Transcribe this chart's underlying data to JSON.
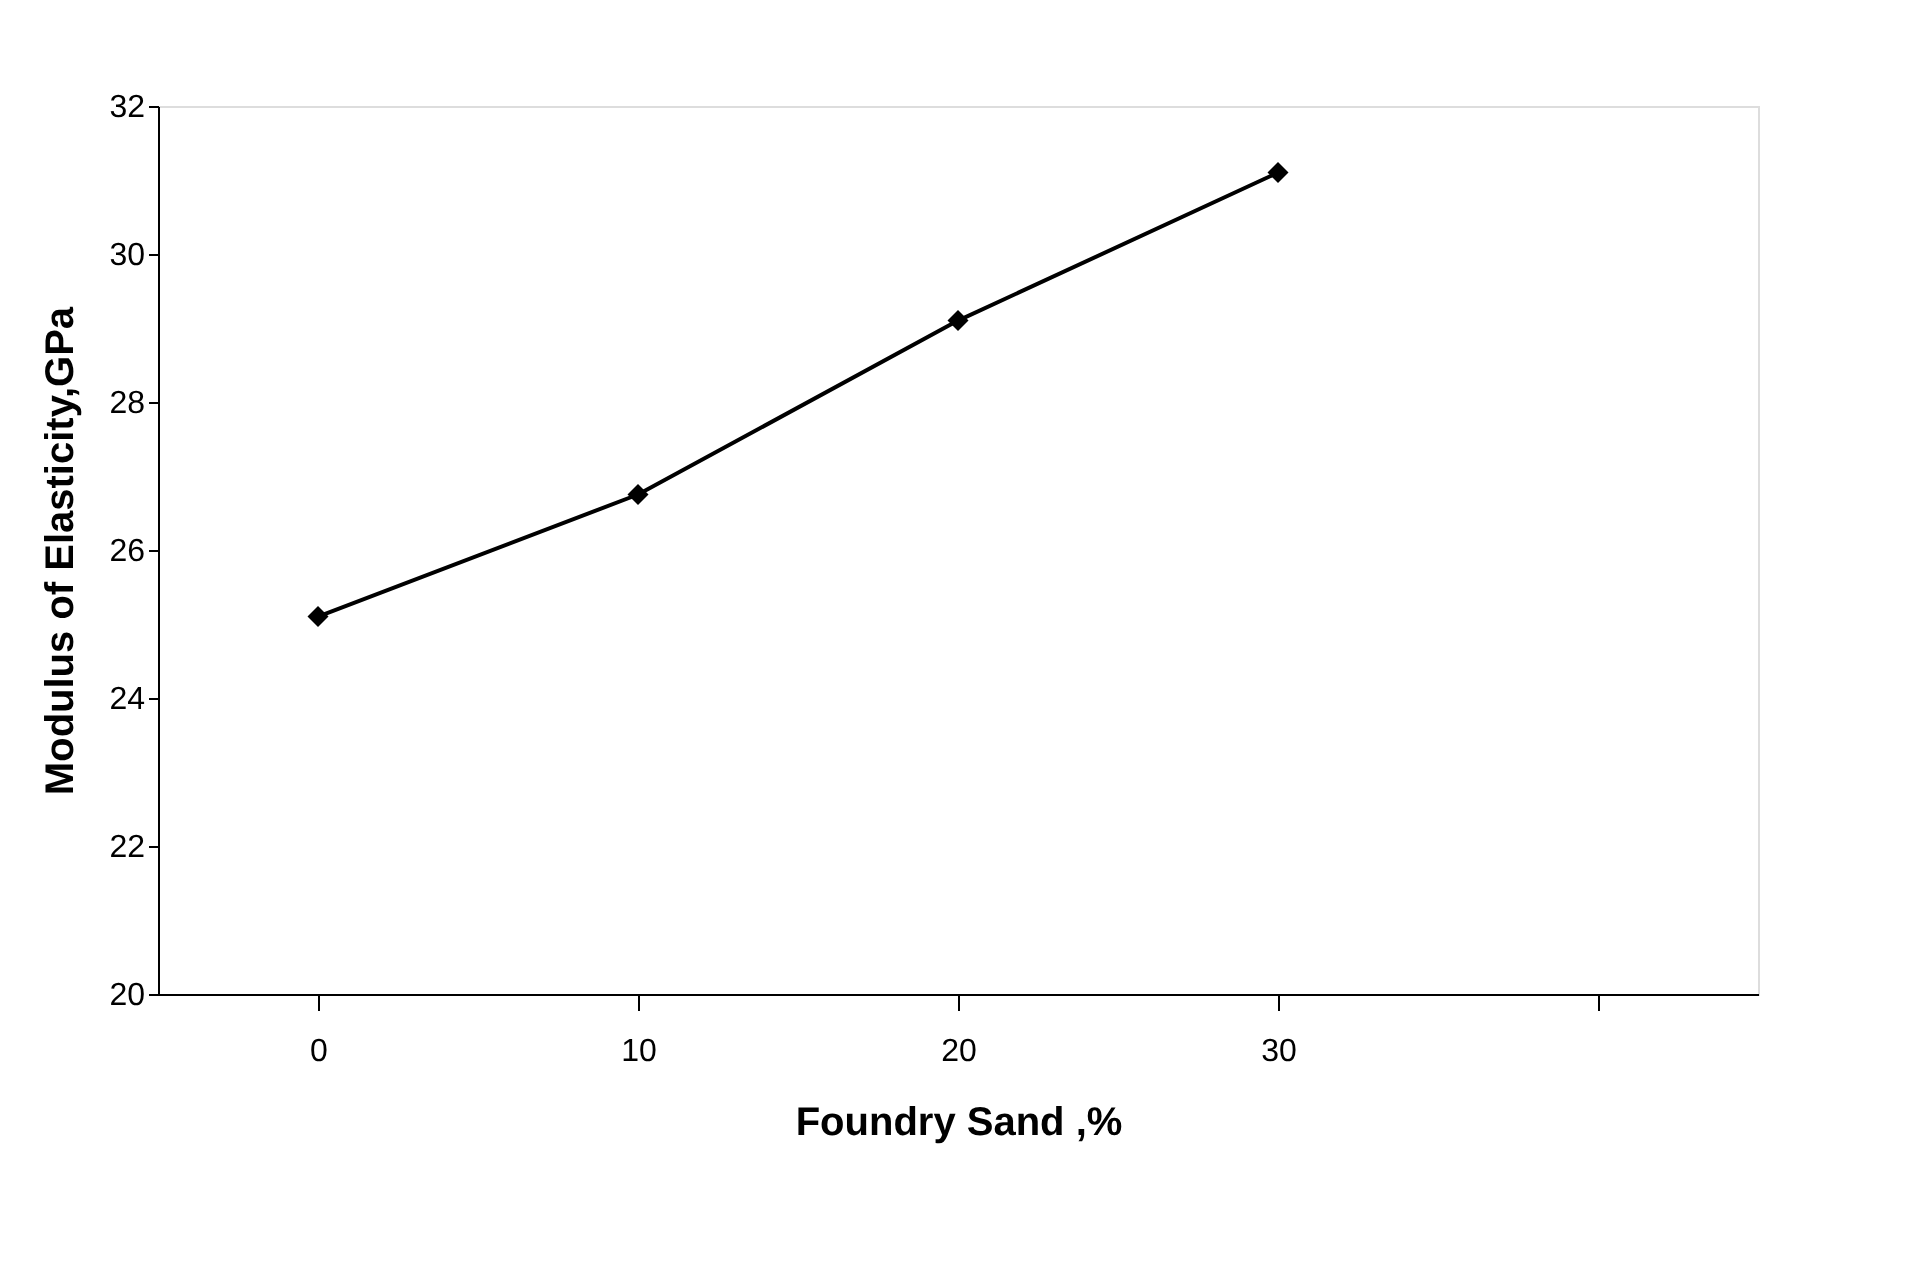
{
  "chart_data": {
    "type": "line",
    "xlabel": "Foundry Sand ,%",
    "ylabel": "Modulus of Elasticity,GPa",
    "categories": [
      "0",
      "10",
      "20",
      "30",
      null
    ],
    "values": [
      25.1,
      26.75,
      29.1,
      31.1,
      null
    ],
    "color": "#000000",
    "marker": "diamond",
    "line_style": "solid",
    "ylim": [
      20,
      32
    ],
    "yticks": [
      20,
      22,
      24,
      26,
      28,
      30,
      32
    ],
    "grid": false
  }
}
